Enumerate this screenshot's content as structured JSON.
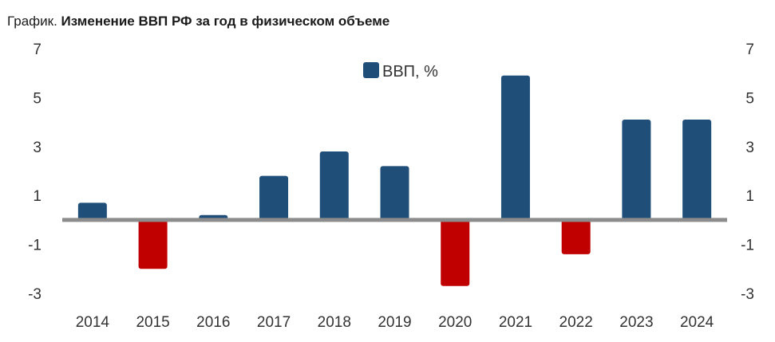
{
  "title": {
    "prefix": "График.",
    "main": "Изменение ВВП РФ за год в физическом объеме"
  },
  "chart_data": {
    "type": "bar",
    "categories": [
      "2014",
      "2015",
      "2016",
      "2017",
      "2018",
      "2019",
      "2020",
      "2021",
      "2022",
      "2023",
      "2024"
    ],
    "series": [
      {
        "name": "ВВП, %",
        "values": [
          0.7,
          -2.0,
          0.2,
          1.8,
          2.8,
          2.2,
          -2.7,
          5.9,
          -1.4,
          4.1,
          4.1
        ]
      }
    ],
    "yticks": [
      "7",
      "5",
      "3",
      "1",
      "-1",
      "-3"
    ],
    "ylim": [
      -3,
      7
    ],
    "secondary_y_axis": true,
    "grid": false,
    "legend_position": "top-center",
    "colors": {
      "positive": "#1f4e79",
      "negative": "#c00000",
      "zero_line": "#8c8c8c"
    }
  }
}
